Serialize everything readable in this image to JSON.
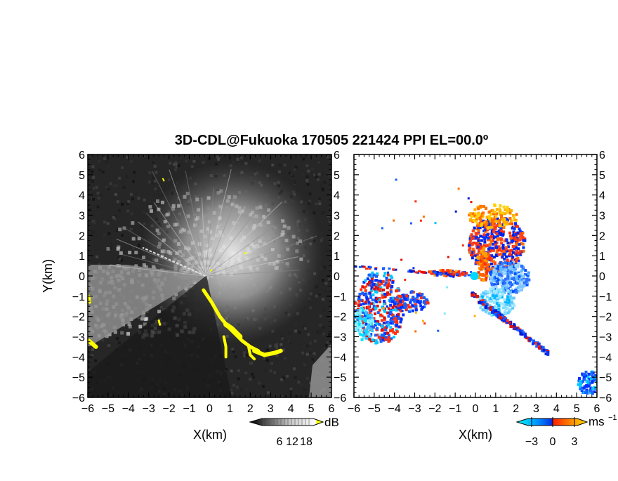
{
  "title": "3D-CDL@Fukuoka 170505 221424 PPI EL=00.0º",
  "chart_data": [
    {
      "type": "heatmap",
      "panel": "reflectivity",
      "xlabel": "X(km)",
      "ylabel": "Y(km)",
      "xlim": [
        -6,
        6
      ],
      "ylim": [
        -6,
        6
      ],
      "x_ticks": [
        "−6",
        "−5",
        "−4",
        "−3",
        "−2",
        "−1",
        "0",
        "1",
        "2",
        "3",
        "4",
        "5",
        "6"
      ],
      "y_ticks": [
        "6",
        "5",
        "4",
        "3",
        "2",
        "1",
        "0",
        "−1",
        "−2",
        "−3",
        "−4",
        "−5",
        "−6"
      ],
      "colorbar": {
        "unit": "dB",
        "ticks": [
          "6",
          "12",
          "18"
        ],
        "colors": [
          "#000000",
          "#ffffff",
          "#ffff00"
        ]
      }
    },
    {
      "type": "heatmap",
      "panel": "doppler-velocity",
      "xlabel": "X(km)",
      "xlim": [
        -6,
        6
      ],
      "ylim": [
        -6,
        6
      ],
      "x_ticks": [
        "−6",
        "−5",
        "−4",
        "−3",
        "−2",
        "−1",
        "0",
        "1",
        "2",
        "3",
        "4",
        "5",
        "6"
      ],
      "y_ticks": [
        "6",
        "5",
        "4",
        "3",
        "2",
        "1",
        "0",
        "−1",
        "−2",
        "−3",
        "−4",
        "−5",
        "−6"
      ],
      "colorbar": {
        "unit": "ms",
        "unit_exponent": "−1",
        "ticks": [
          "−3",
          "0",
          "3"
        ],
        "colors": [
          "#00e5ff",
          "#0050ff",
          "#ff3000",
          "#ffd000"
        ]
      }
    }
  ]
}
